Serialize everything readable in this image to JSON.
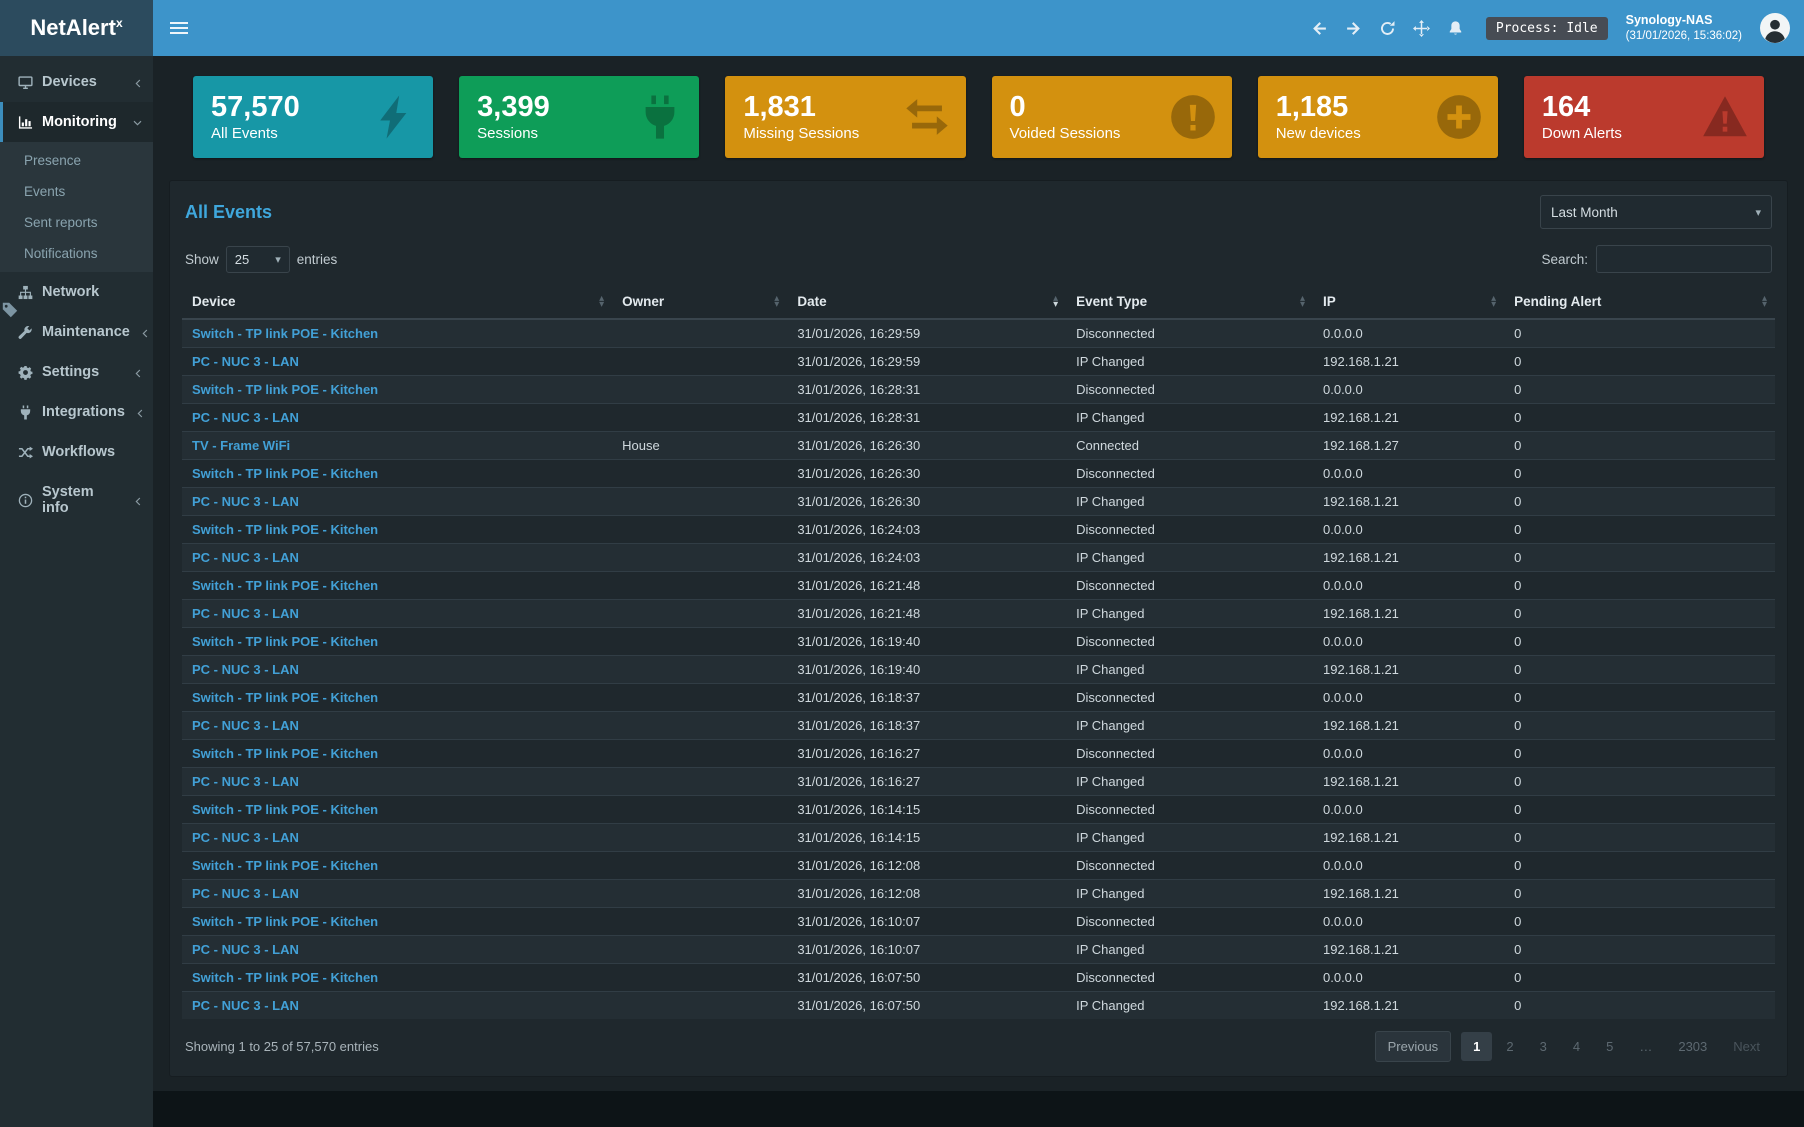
{
  "colors": {
    "accent": "#3c8dbc",
    "link": "#42a0d6",
    "title": "#3fa7dc"
  },
  "app": {
    "brand_name": "NetAlert",
    "brand_sup": "x",
    "process_status": "Process: Idle",
    "host_name": "Synology-NAS",
    "host_time": "(31/01/2026, 15:36:02)"
  },
  "topbar": {
    "icons": [
      {
        "button": "nav-back-button",
        "icon": "back-arrow-icon"
      },
      {
        "button": "nav-forward-button",
        "icon": "forward-arrow-icon"
      },
      {
        "button": "nav-refresh-button",
        "icon": "refresh-icon"
      },
      {
        "button": "nav-fullscreen-button",
        "icon": "fullscreen-move-icon"
      },
      {
        "button": "nav-notifications-button",
        "icon": "bell-icon"
      }
    ]
  },
  "sidebar": {
    "items": [
      {
        "label": "Devices",
        "icon": "desktop-icon",
        "chevron": "left"
      },
      {
        "label": "Monitoring",
        "icon": "chart-icon",
        "chevron": "down",
        "active": true,
        "children": [
          {
            "label": "Presence"
          },
          {
            "label": "Events"
          },
          {
            "label": "Sent reports"
          },
          {
            "label": "Notifications"
          }
        ]
      },
      {
        "label": "Network",
        "icon": "sitemap-icon"
      },
      {
        "label": "Maintenance",
        "icon": "wrench-icon",
        "chevron": "left"
      },
      {
        "label": "Settings",
        "icon": "gears-icon",
        "chevron": "left"
      },
      {
        "label": "Integrations",
        "icon": "plug-icon",
        "chevron": "left"
      },
      {
        "label": "Workflows",
        "icon": "shuffle-icon"
      },
      {
        "label": "System info",
        "icon": "info-icon",
        "chevron": "left"
      }
    ]
  },
  "cards": [
    {
      "value": "57,570",
      "label": "All Events",
      "color": "#1797a6",
      "icon": "bolt-icon"
    },
    {
      "value": "3,399",
      "label": "Sessions",
      "color": "#0e9d58",
      "icon": "plug-icon"
    },
    {
      "value": "1,831",
      "label": "Missing Sessions",
      "color": "#d3910f",
      "icon": "exchange-icon"
    },
    {
      "value": "0",
      "label": "Voided Sessions",
      "color": "#d3910f",
      "icon": "exclamation-circle-icon"
    },
    {
      "value": "1,185",
      "label": "New devices",
      "color": "#d3910f",
      "icon": "plus-circle-icon"
    },
    {
      "value": "164",
      "label": "Down Alerts",
      "color": "#bb3a2d",
      "icon": "warning-triangle-icon"
    }
  ],
  "panel": {
    "title": "All Events",
    "period_value": "Last Month",
    "show_label": "Show",
    "page_length": "25",
    "entries_label": "entries",
    "search_label": "Search:",
    "info": "Showing 1 to 25 of 57,570 entries",
    "table": {
      "columns": [
        {
          "label": "Device"
        },
        {
          "label": "Owner"
        },
        {
          "label": "Date",
          "sorted": "desc"
        },
        {
          "label": "Event Type"
        },
        {
          "label": "IP"
        },
        {
          "label": "Pending Alert"
        }
      ],
      "rows": [
        [
          "Switch - TP link POE - Kitchen",
          "",
          "31/01/2026, 16:29:59",
          "Disconnected",
          "0.0.0.0",
          "0"
        ],
        [
          "PC - NUC 3 - LAN",
          "",
          "31/01/2026, 16:29:59",
          "IP Changed",
          "192.168.1.21",
          "0"
        ],
        [
          "Switch - TP link POE - Kitchen",
          "",
          "31/01/2026, 16:28:31",
          "Disconnected",
          "0.0.0.0",
          "0"
        ],
        [
          "PC - NUC 3 - LAN",
          "",
          "31/01/2026, 16:28:31",
          "IP Changed",
          "192.168.1.21",
          "0"
        ],
        [
          "TV - Frame WiFi",
          "House",
          "31/01/2026, 16:26:30",
          "Connected",
          "192.168.1.27",
          "0"
        ],
        [
          "Switch - TP link POE - Kitchen",
          "",
          "31/01/2026, 16:26:30",
          "Disconnected",
          "0.0.0.0",
          "0"
        ],
        [
          "PC - NUC 3 - LAN",
          "",
          "31/01/2026, 16:26:30",
          "IP Changed",
          "192.168.1.21",
          "0"
        ],
        [
          "Switch - TP link POE - Kitchen",
          "",
          "31/01/2026, 16:24:03",
          "Disconnected",
          "0.0.0.0",
          "0"
        ],
        [
          "PC - NUC 3 - LAN",
          "",
          "31/01/2026, 16:24:03",
          "IP Changed",
          "192.168.1.21",
          "0"
        ],
        [
          "Switch - TP link POE - Kitchen",
          "",
          "31/01/2026, 16:21:48",
          "Disconnected",
          "0.0.0.0",
          "0"
        ],
        [
          "PC - NUC 3 - LAN",
          "",
          "31/01/2026, 16:21:48",
          "IP Changed",
          "192.168.1.21",
          "0"
        ],
        [
          "Switch - TP link POE - Kitchen",
          "",
          "31/01/2026, 16:19:40",
          "Disconnected",
          "0.0.0.0",
          "0"
        ],
        [
          "PC - NUC 3 - LAN",
          "",
          "31/01/2026, 16:19:40",
          "IP Changed",
          "192.168.1.21",
          "0"
        ],
        [
          "Switch - TP link POE - Kitchen",
          "",
          "31/01/2026, 16:18:37",
          "Disconnected",
          "0.0.0.0",
          "0"
        ],
        [
          "PC - NUC 3 - LAN",
          "",
          "31/01/2026, 16:18:37",
          "IP Changed",
          "192.168.1.21",
          "0"
        ],
        [
          "Switch - TP link POE - Kitchen",
          "",
          "31/01/2026, 16:16:27",
          "Disconnected",
          "0.0.0.0",
          "0"
        ],
        [
          "PC - NUC 3 - LAN",
          "",
          "31/01/2026, 16:16:27",
          "IP Changed",
          "192.168.1.21",
          "0"
        ],
        [
          "Switch - TP link POE - Kitchen",
          "",
          "31/01/2026, 16:14:15",
          "Disconnected",
          "0.0.0.0",
          "0"
        ],
        [
          "PC - NUC 3 - LAN",
          "",
          "31/01/2026, 16:14:15",
          "IP Changed",
          "192.168.1.21",
          "0"
        ],
        [
          "Switch - TP link POE - Kitchen",
          "",
          "31/01/2026, 16:12:08",
          "Disconnected",
          "0.0.0.0",
          "0"
        ],
        [
          "PC - NUC 3 - LAN",
          "",
          "31/01/2026, 16:12:08",
          "IP Changed",
          "192.168.1.21",
          "0"
        ],
        [
          "Switch - TP link POE - Kitchen",
          "",
          "31/01/2026, 16:10:07",
          "Disconnected",
          "0.0.0.0",
          "0"
        ],
        [
          "PC - NUC 3 - LAN",
          "",
          "31/01/2026, 16:10:07",
          "IP Changed",
          "192.168.1.21",
          "0"
        ],
        [
          "Switch - TP link POE - Kitchen",
          "",
          "31/01/2026, 16:07:50",
          "Disconnected",
          "0.0.0.0",
          "0"
        ],
        [
          "PC - NUC 3 - LAN",
          "",
          "31/01/2026, 16:07:50",
          "IP Changed",
          "192.168.1.21",
          "0"
        ]
      ]
    },
    "pagination": [
      {
        "label": "Previous",
        "kind": "prev"
      },
      {
        "label": "1",
        "kind": "page",
        "active": true
      },
      {
        "label": "2",
        "kind": "page"
      },
      {
        "label": "3",
        "kind": "page"
      },
      {
        "label": "4",
        "kind": "page"
      },
      {
        "label": "5",
        "kind": "page"
      },
      {
        "label": "…",
        "kind": "ellipsis"
      },
      {
        "label": "2303",
        "kind": "page"
      },
      {
        "label": "Next",
        "kind": "next"
      }
    ]
  }
}
